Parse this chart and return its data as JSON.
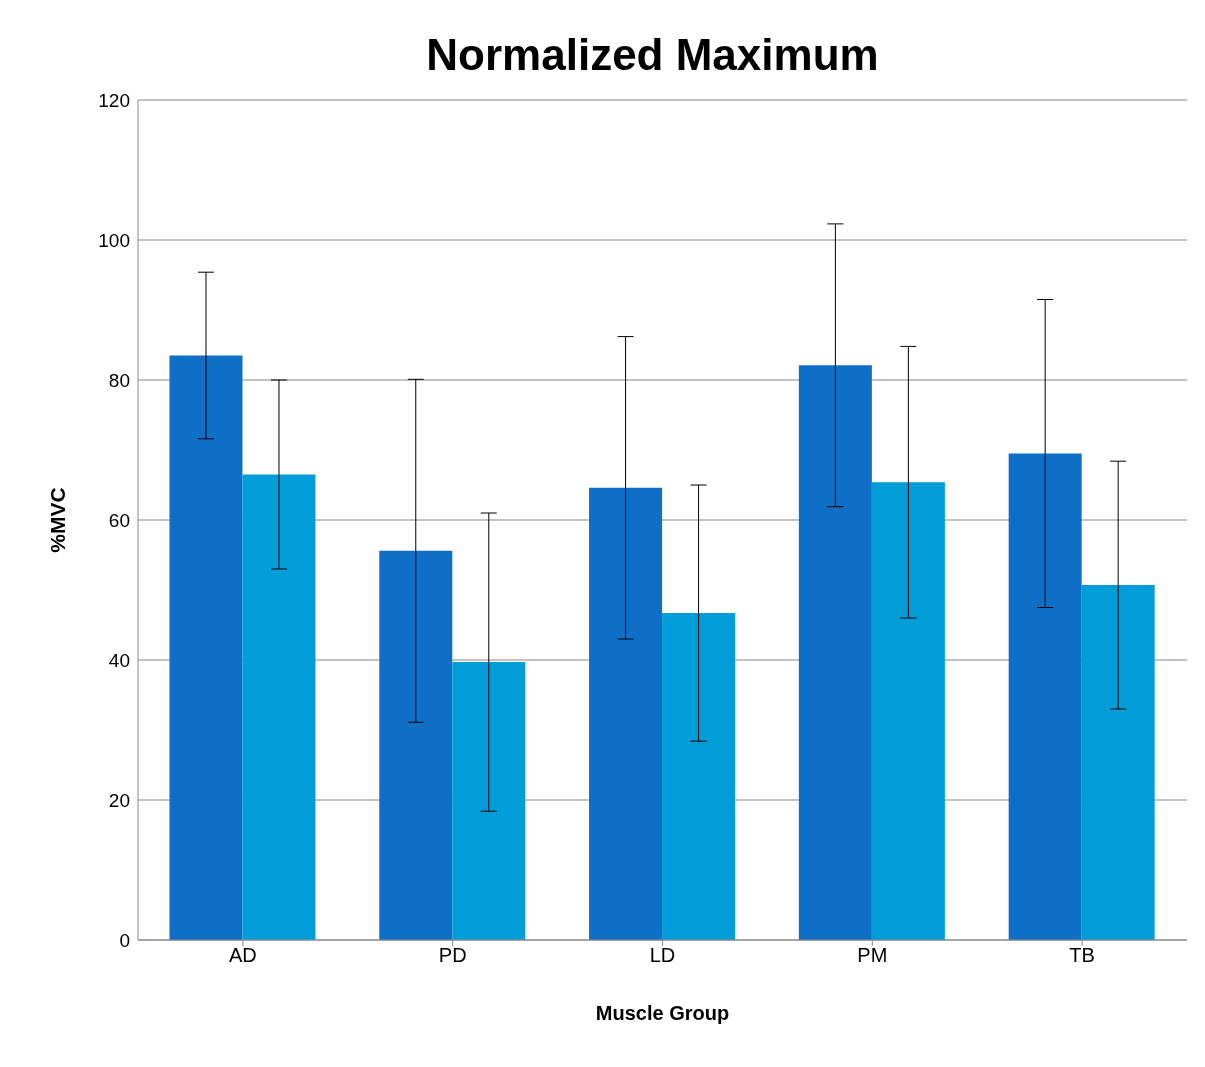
{
  "chart_data": {
    "type": "bar",
    "title": "Normalized Maximum",
    "xlabel": "Muscle Group",
    "ylabel": "%MVC",
    "categories": [
      "AD",
      "PD",
      "LD",
      "PM",
      "TB"
    ],
    "series": [
      {
        "color": "#0f6fc6",
        "values": [
          83.5,
          55.6,
          64.6,
          82.1,
          69.5
        ],
        "errors": [
          11.9,
          24.5,
          21.6,
          20.2,
          22.0
        ]
      },
      {
        "color": "#009dd9",
        "values": [
          66.5,
          39.7,
          46.7,
          65.4,
          50.7
        ],
        "errors": [
          13.5,
          21.3,
          18.3,
          19.4,
          17.7
        ]
      }
    ],
    "ylim": [
      0,
      120
    ],
    "yticks": [
      0,
      20,
      40,
      60,
      80,
      100,
      120
    ],
    "grid": "y"
  }
}
